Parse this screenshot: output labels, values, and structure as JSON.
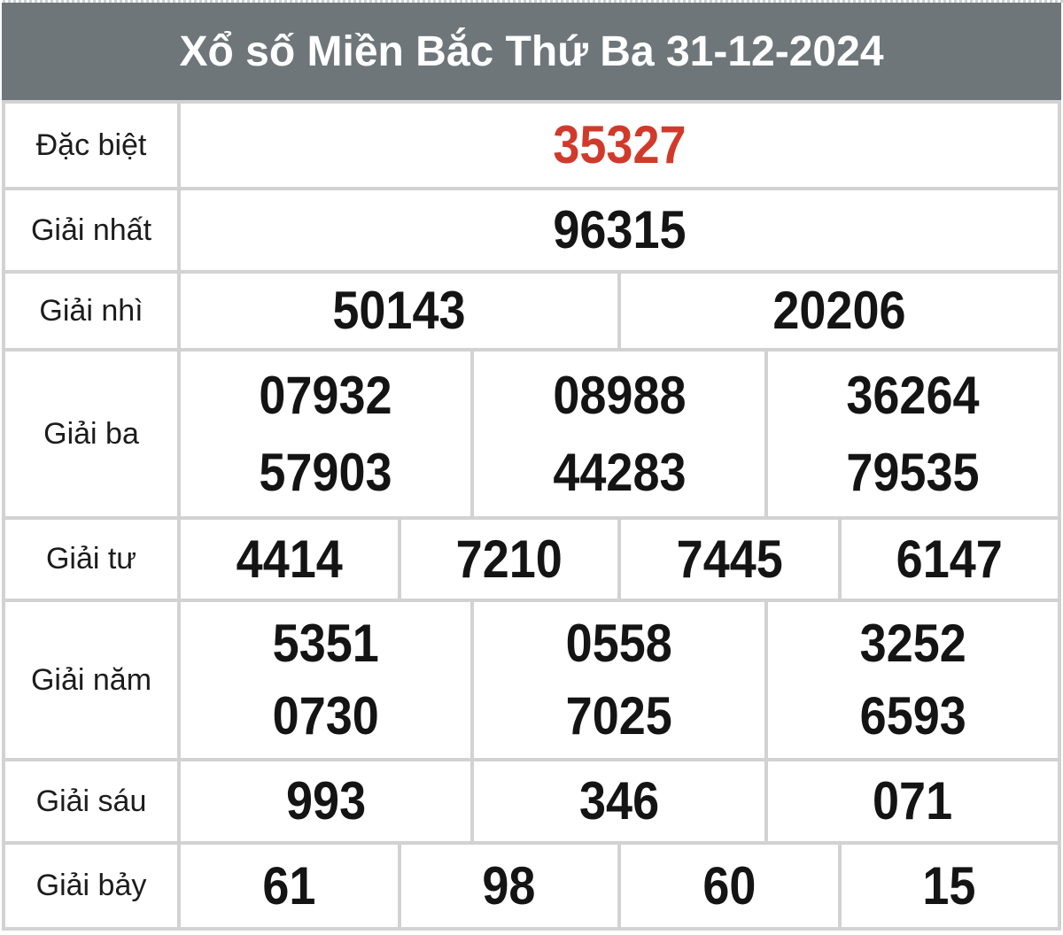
{
  "header": {
    "title": "Xổ số Miền Bắc Thứ Ba 31-12-2024"
  },
  "colors": {
    "header_bg": "#6e767a",
    "header_text": "#ffffff",
    "special_red": "#d13a2b",
    "grid_line": "#d2d2d2",
    "cell_bg": "#ffffff",
    "label_text": "#1c1c1c",
    "number_text": "#141414"
  },
  "table": {
    "rows": [
      {
        "label": "Đặc biệt",
        "highlight": true,
        "groups": [
          [
            "35327"
          ]
        ]
      },
      {
        "label": "Giải nhất",
        "highlight": false,
        "groups": [
          [
            "96315"
          ]
        ]
      },
      {
        "label": "Giải nhì",
        "highlight": false,
        "groups": [
          [
            "50143"
          ],
          [
            "20206"
          ]
        ]
      },
      {
        "label": "Giải ba",
        "highlight": false,
        "groups": [
          [
            "07932",
            "57903"
          ],
          [
            "08988",
            "44283"
          ],
          [
            "36264",
            "79535"
          ]
        ]
      },
      {
        "label": "Giải tư",
        "highlight": false,
        "groups": [
          [
            "4414"
          ],
          [
            "7210"
          ],
          [
            "7445"
          ],
          [
            "6147"
          ]
        ]
      },
      {
        "label": "Giải năm",
        "highlight": false,
        "groups": [
          [
            "5351",
            "0730"
          ],
          [
            "0558",
            "7025"
          ],
          [
            "3252",
            "6593"
          ]
        ]
      },
      {
        "label": "Giải sáu",
        "highlight": false,
        "groups": [
          [
            "993"
          ],
          [
            "346"
          ],
          [
            "071"
          ]
        ]
      },
      {
        "label": "Giải bảy",
        "highlight": false,
        "groups": [
          [
            "61"
          ],
          [
            "98"
          ],
          [
            "60"
          ],
          [
            "15"
          ]
        ]
      }
    ]
  }
}
